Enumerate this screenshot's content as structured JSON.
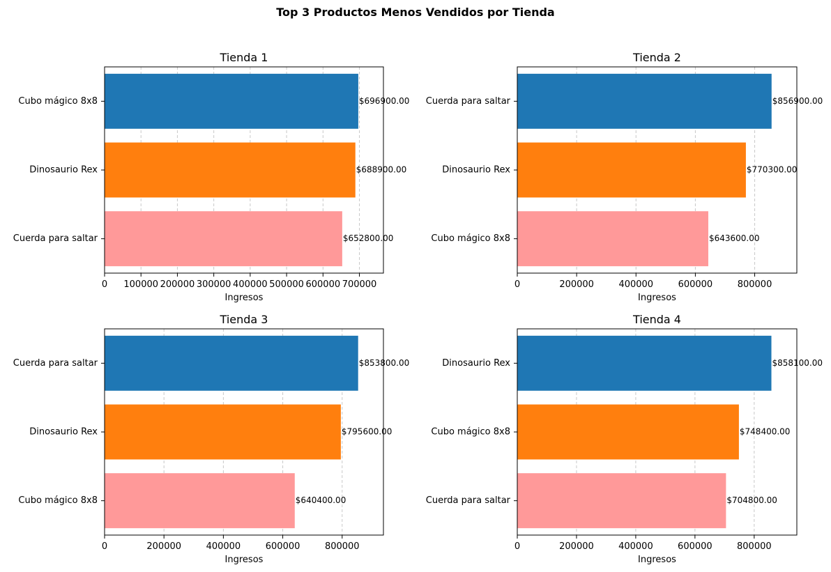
{
  "suptitle": "Top 3 Productos Menos Vendidos por Tienda",
  "chart_data": [
    {
      "type": "bar",
      "orientation": "horizontal",
      "title": "Tienda 1",
      "xlabel": "Ingresos",
      "ylabel": "",
      "xlim": [
        0,
        766000
      ],
      "xticks": [
        0,
        100000,
        200000,
        300000,
        400000,
        500000,
        600000,
        700000
      ],
      "grid": "x-dashed",
      "categories": [
        "Cubo mágico 8x8",
        "Dinosaurio Rex",
        "Cuerda para saltar"
      ],
      "values": [
        696900,
        688900,
        652800
      ],
      "labels": [
        "$696900.00",
        "$688900.00",
        "$652800.00"
      ],
      "colors": [
        "#1f77b4",
        "#ff7f0e",
        "#ff9999"
      ]
    },
    {
      "type": "bar",
      "orientation": "horizontal",
      "title": "Tienda 2",
      "xlabel": "Ingresos",
      "ylabel": "",
      "xlim": [
        0,
        942000
      ],
      "xticks": [
        0,
        200000,
        400000,
        600000,
        800000
      ],
      "grid": "x-dashed",
      "categories": [
        "Cuerda para saltar",
        "Dinosaurio Rex",
        "Cubo mágico 8x8"
      ],
      "values": [
        856900,
        770300,
        643600
      ],
      "labels": [
        "$856900.00",
        "$770300.00",
        "$643600.00"
      ],
      "colors": [
        "#1f77b4",
        "#ff7f0e",
        "#ff9999"
      ]
    },
    {
      "type": "bar",
      "orientation": "horizontal",
      "title": "Tienda 3",
      "xlabel": "Ingresos",
      "ylabel": "",
      "xlim": [
        0,
        939000
      ],
      "xticks": [
        0,
        200000,
        400000,
        600000,
        800000
      ],
      "grid": "x-dashed",
      "categories": [
        "Cuerda para saltar",
        "Dinosaurio Rex",
        "Cubo mágico 8x8"
      ],
      "values": [
        853800,
        795600,
        640400
      ],
      "labels": [
        "$853800.00",
        "$795600.00",
        "$640400.00"
      ],
      "colors": [
        "#1f77b4",
        "#ff7f0e",
        "#ff9999"
      ]
    },
    {
      "type": "bar",
      "orientation": "horizontal",
      "title": "Tienda 4",
      "xlabel": "Ingresos",
      "ylabel": "",
      "xlim": [
        0,
        944000
      ],
      "xticks": [
        0,
        200000,
        400000,
        600000,
        800000
      ],
      "grid": "x-dashed",
      "categories": [
        "Dinosaurio Rex",
        "Cubo mágico 8x8",
        "Cuerda para saltar"
      ],
      "values": [
        858100,
        748400,
        704800
      ],
      "labels": [
        "$858100.00",
        "$748400.00",
        "$704800.00"
      ],
      "colors": [
        "#1f77b4",
        "#ff7f0e",
        "#ff9999"
      ]
    }
  ]
}
